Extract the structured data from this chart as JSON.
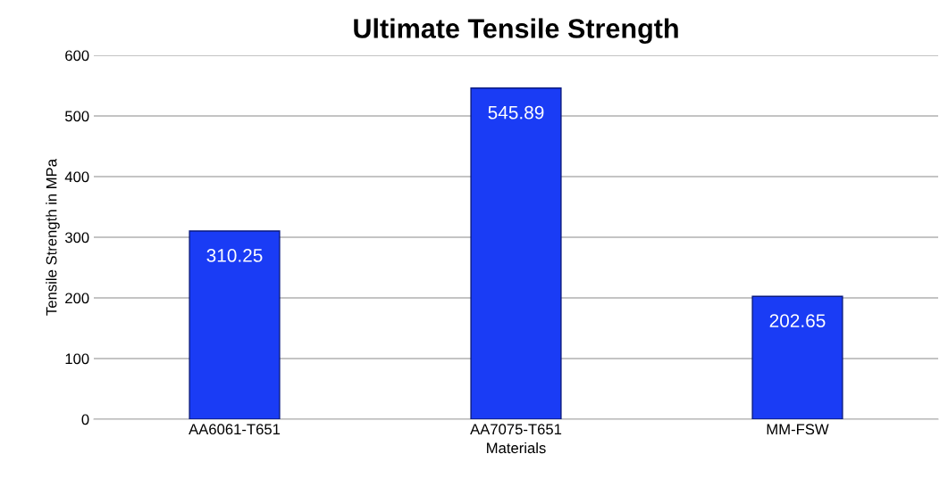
{
  "chart_data": {
    "type": "bar",
    "title": "Ultimate Tensile Strength",
    "xlabel": "Materials",
    "ylabel": "Tensile Strength in MPa",
    "categories": [
      "AA6061-T651",
      "AA7075-T651",
      "MM-FSW"
    ],
    "values": [
      310.25,
      545.89,
      202.65
    ],
    "color": "#1a3cf5",
    "ylim": [
      0,
      600
    ],
    "yticks": [
      0,
      100,
      200,
      300,
      400,
      500,
      600
    ],
    "grid": "y",
    "data_labels": true,
    "legend": false
  }
}
